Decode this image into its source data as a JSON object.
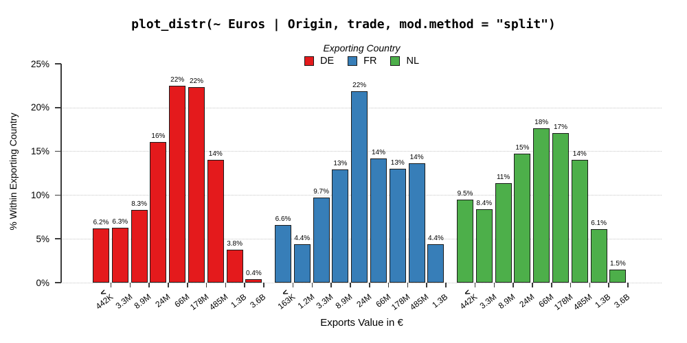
{
  "title": "plot_distr(~ Euros | Origin, trade, mod.method = \"split\")",
  "legend": {
    "title": "Exporting Country",
    "entries": [
      {
        "label": "DE",
        "color": "#e41a1c"
      },
      {
        "label": "FR",
        "color": "#377eb8"
      },
      {
        "label": "NL",
        "color": "#4daf4a"
      }
    ]
  },
  "axes": {
    "y_title": "% Within Exporting Country",
    "x_title": "Exports Value in €"
  },
  "chart_data": {
    "type": "bar",
    "title": "plot_distr(~ Euros | Origin, trade, mod.method = \"split\")",
    "xlabel": "Exports Value in €",
    "ylabel": "% Within Exporting Country",
    "ylim": [
      0,
      25
    ],
    "y_ticks": [
      {
        "value": 0,
        "label": "0%",
        "gridline": true
      },
      {
        "value": 5,
        "label": "5%",
        "gridline": true
      },
      {
        "value": 10,
        "label": "10%",
        "gridline": true
      },
      {
        "value": 15,
        "label": "15%",
        "gridline": true
      },
      {
        "value": 20,
        "label": "20%",
        "gridline": true
      },
      {
        "value": 25,
        "label": "25%",
        "gridline": false
      }
    ],
    "grid": "dotted-horizontal",
    "legend_position": "top-center",
    "less_than_symbol": "<",
    "groups": [
      {
        "name": "DE",
        "color": "#e41a1c",
        "bin_upper_edges": [
          "442K",
          "3.3M",
          "8.9M",
          "24M",
          "66M",
          "178M",
          "485M",
          "1.3B",
          "3.6B"
        ],
        "values": [
          6.2,
          6.3,
          8.3,
          16.1,
          22.5,
          22.3,
          14.0,
          3.8,
          0.4
        ],
        "value_labels": [
          "6.2%",
          "6.3%",
          "8.3%",
          "16%",
          "22%",
          "22%",
          "14%",
          "3.8%",
          "0.4%"
        ]
      },
      {
        "name": "FR",
        "color": "#377eb8",
        "bin_upper_edges": [
          "163K",
          "1.2M",
          "3.3M",
          "8.9M",
          "24M",
          "66M",
          "178M",
          "485M",
          "1.3B"
        ],
        "values": [
          6.6,
          4.4,
          9.7,
          12.9,
          21.9,
          14.2,
          13.0,
          13.6,
          4.4
        ],
        "value_labels": [
          "6.6%",
          "4.4%",
          "9.7%",
          "13%",
          "22%",
          "14%",
          "13%",
          "14%",
          "4.4%"
        ]
      },
      {
        "name": "NL",
        "color": "#4daf4a",
        "bin_upper_edges": [
          "442K",
          "3.3M",
          "8.9M",
          "24M",
          "66M",
          "178M",
          "485M",
          "1.3B",
          "3.6B"
        ],
        "values": [
          9.5,
          8.4,
          11.4,
          14.7,
          17.6,
          17.1,
          14.0,
          6.1,
          1.5
        ],
        "value_labels": [
          "9.5%",
          "8.4%",
          "11%",
          "15%",
          "18%",
          "17%",
          "14%",
          "6.1%",
          "1.5%"
        ]
      }
    ]
  }
}
